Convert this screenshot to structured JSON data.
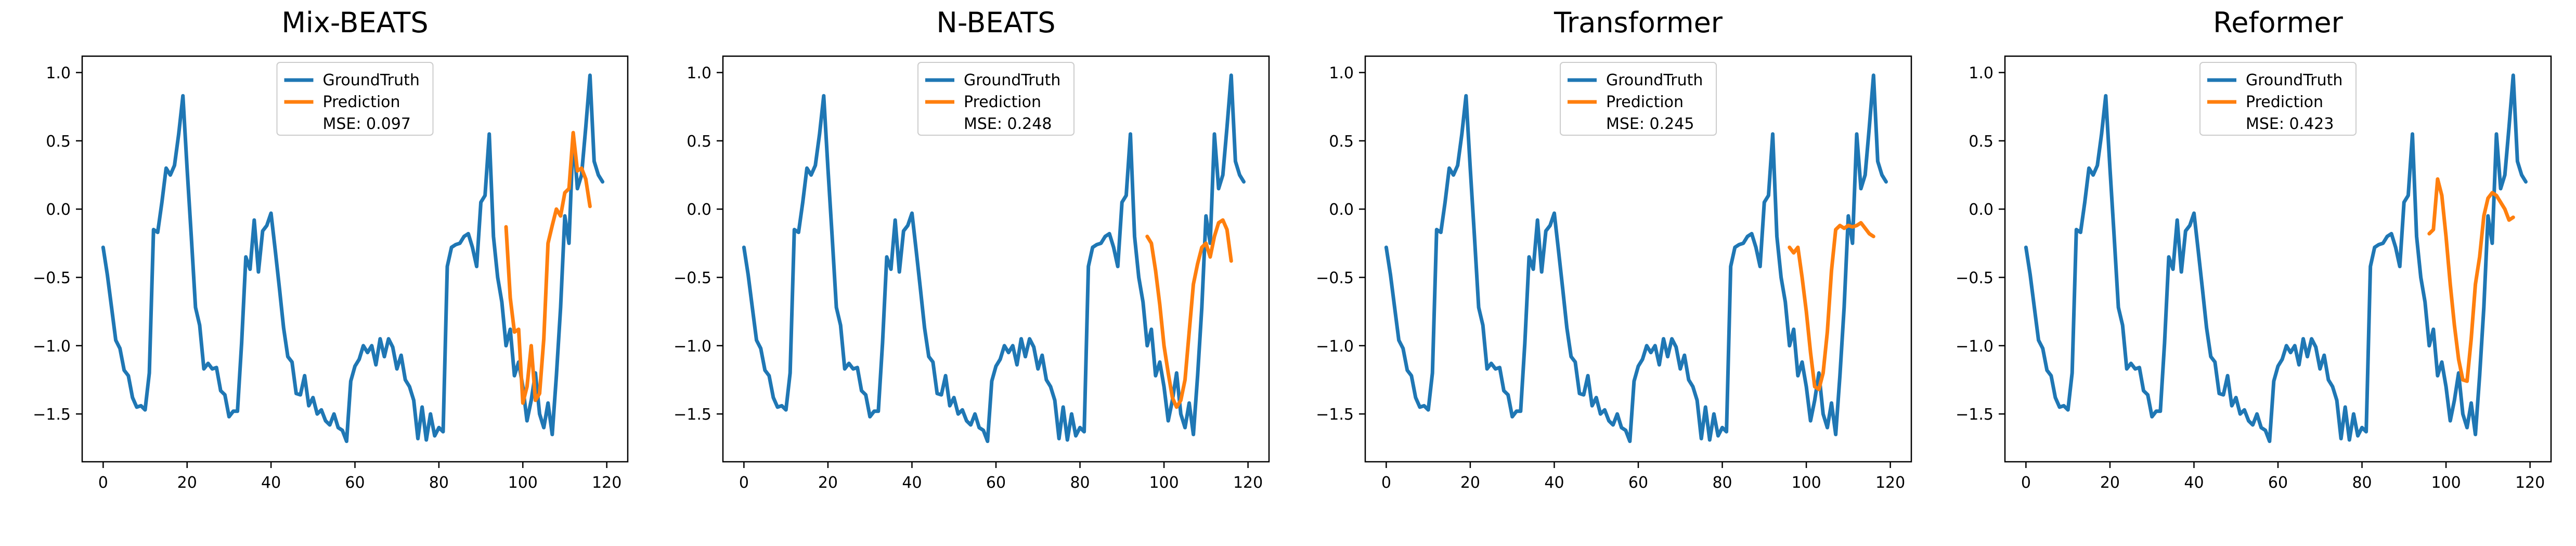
{
  "figure": {
    "colors": {
      "ground_truth": "#1f77b4",
      "prediction": "#ff7f0e",
      "axis": "#000000",
      "background": "#ffffff"
    },
    "legend_labels": {
      "ground_truth": "GroundTruth",
      "prediction": "Prediction"
    }
  },
  "chart_data": [
    {
      "type": "line",
      "title": "Mix-BEATS",
      "xlabel": "",
      "ylabel": "",
      "xlim": [
        -5,
        125
      ],
      "ylim": [
        -1.85,
        1.12
      ],
      "xticks": [
        0,
        20,
        40,
        60,
        80,
        100,
        120
      ],
      "yticks": [
        -1.5,
        -1.0,
        -0.5,
        0.0,
        0.5,
        1.0
      ],
      "ytick_labels": [
        "−1.5",
        "−1.0",
        "−0.5",
        "0.0",
        "0.5",
        "1.0"
      ],
      "grid": false,
      "legend_position": "top-center",
      "annotation": "MSE: 0.097",
      "series": [
        {
          "name": "GroundTruth",
          "x_start": 0,
          "values": [
            -0.28,
            -0.48,
            -0.72,
            -0.96,
            -1.02,
            -1.18,
            -1.22,
            -1.38,
            -1.45,
            -1.44,
            -1.47,
            -1.2,
            -0.15,
            -0.17,
            0.05,
            0.3,
            0.25,
            0.32,
            0.55,
            0.83,
            0.3,
            -0.2,
            -0.72,
            -0.85,
            -1.17,
            -1.13,
            -1.17,
            -1.16,
            -1.33,
            -1.36,
            -1.52,
            -1.48,
            -1.48,
            -0.98,
            -0.35,
            -0.44,
            -0.08,
            -0.46,
            -0.16,
            -0.12,
            -0.03,
            -0.3,
            -0.58,
            -0.87,
            -1.08,
            -1.12,
            -1.35,
            -1.36,
            -1.22,
            -1.44,
            -1.38,
            -1.5,
            -1.47,
            -1.55,
            -1.58,
            -1.5,
            -1.6,
            -1.62,
            -1.7,
            -1.26,
            -1.15,
            -1.1,
            -1.0,
            -1.05,
            -1.0,
            -1.14,
            -0.95,
            -1.08,
            -0.95,
            -1.01,
            -1.17,
            -1.07,
            -1.25,
            -1.3,
            -1.4,
            -1.68,
            -1.45,
            -1.69,
            -1.5,
            -1.66,
            -1.6,
            -1.63,
            -0.42,
            -0.28,
            -0.26,
            -0.25,
            -0.2,
            -0.18,
            -0.28,
            -0.42,
            0.05,
            0.1,
            0.55,
            -0.2,
            -0.5,
            -0.68,
            -1.0,
            -0.88,
            -1.22,
            -1.12,
            -1.3,
            -1.55,
            -1.4,
            -1.2,
            -1.5,
            -1.6,
            -1.42,
            -1.65,
            -1.22,
            -0.72,
            -0.05,
            -0.25,
            0.55,
            0.15,
            0.25,
            0.6,
            0.98,
            0.35,
            0.25,
            0.2
          ]
        },
        {
          "name": "Prediction",
          "x_start": 96,
          "values": [
            -0.13,
            -0.65,
            -0.9,
            -0.88,
            -1.42,
            -1.3,
            -1.0,
            -1.4,
            -1.35,
            -0.95,
            -0.25,
            -0.12,
            0.0,
            -0.05,
            0.12,
            0.15,
            0.56,
            0.28,
            0.3,
            0.22,
            0.02
          ]
        }
      ]
    },
    {
      "type": "line",
      "title": "N-BEATS",
      "xlabel": "",
      "ylabel": "",
      "xlim": [
        -5,
        125
      ],
      "ylim": [
        -1.85,
        1.12
      ],
      "xticks": [
        0,
        20,
        40,
        60,
        80,
        100,
        120
      ],
      "yticks": [
        -1.5,
        -1.0,
        -0.5,
        0.0,
        0.5,
        1.0
      ],
      "ytick_labels": [
        "−1.5",
        "−1.0",
        "−0.5",
        "0.0",
        "0.5",
        "1.0"
      ],
      "grid": false,
      "legend_position": "top-center",
      "annotation": "MSE: 0.248",
      "series": [
        {
          "name": "GroundTruth",
          "x_start": 0,
          "values": [
            -0.28,
            -0.48,
            -0.72,
            -0.96,
            -1.02,
            -1.18,
            -1.22,
            -1.38,
            -1.45,
            -1.44,
            -1.47,
            -1.2,
            -0.15,
            -0.17,
            0.05,
            0.3,
            0.25,
            0.32,
            0.55,
            0.83,
            0.3,
            -0.2,
            -0.72,
            -0.85,
            -1.17,
            -1.13,
            -1.17,
            -1.16,
            -1.33,
            -1.36,
            -1.52,
            -1.48,
            -1.48,
            -0.98,
            -0.35,
            -0.44,
            -0.08,
            -0.46,
            -0.16,
            -0.12,
            -0.03,
            -0.3,
            -0.58,
            -0.87,
            -1.08,
            -1.12,
            -1.35,
            -1.36,
            -1.22,
            -1.44,
            -1.38,
            -1.5,
            -1.47,
            -1.55,
            -1.58,
            -1.5,
            -1.6,
            -1.62,
            -1.7,
            -1.26,
            -1.15,
            -1.1,
            -1.0,
            -1.05,
            -1.0,
            -1.14,
            -0.95,
            -1.08,
            -0.95,
            -1.01,
            -1.17,
            -1.07,
            -1.25,
            -1.3,
            -1.4,
            -1.68,
            -1.45,
            -1.69,
            -1.5,
            -1.66,
            -1.6,
            -1.63,
            -0.42,
            -0.28,
            -0.26,
            -0.25,
            -0.2,
            -0.18,
            -0.28,
            -0.42,
            0.05,
            0.1,
            0.55,
            -0.2,
            -0.5,
            -0.68,
            -1.0,
            -0.88,
            -1.22,
            -1.12,
            -1.3,
            -1.55,
            -1.4,
            -1.2,
            -1.5,
            -1.6,
            -1.42,
            -1.65,
            -1.22,
            -0.72,
            -0.05,
            -0.25,
            0.55,
            0.15,
            0.25,
            0.6,
            0.98,
            0.35,
            0.25,
            0.2
          ]
        },
        {
          "name": "Prediction",
          "x_start": 96,
          "values": [
            -0.2,
            -0.25,
            -0.45,
            -0.7,
            -1.0,
            -1.2,
            -1.38,
            -1.45,
            -1.4,
            -1.25,
            -0.9,
            -0.55,
            -0.4,
            -0.28,
            -0.25,
            -0.35,
            -0.2,
            -0.1,
            -0.08,
            -0.15,
            -0.38
          ]
        }
      ]
    },
    {
      "type": "line",
      "title": "Transformer",
      "xlabel": "",
      "ylabel": "",
      "xlim": [
        -5,
        125
      ],
      "ylim": [
        -1.85,
        1.12
      ],
      "xticks": [
        0,
        20,
        40,
        60,
        80,
        100,
        120
      ],
      "yticks": [
        -1.5,
        -1.0,
        -0.5,
        0.0,
        0.5,
        1.0
      ],
      "ytick_labels": [
        "−1.5",
        "−1.0",
        "−0.5",
        "0.0",
        "0.5",
        "1.0"
      ],
      "grid": false,
      "legend_position": "top-center",
      "annotation": "MSE: 0.245",
      "series": [
        {
          "name": "GroundTruth",
          "x_start": 0,
          "values": [
            -0.28,
            -0.48,
            -0.72,
            -0.96,
            -1.02,
            -1.18,
            -1.22,
            -1.38,
            -1.45,
            -1.44,
            -1.47,
            -1.2,
            -0.15,
            -0.17,
            0.05,
            0.3,
            0.25,
            0.32,
            0.55,
            0.83,
            0.3,
            -0.2,
            -0.72,
            -0.85,
            -1.17,
            -1.13,
            -1.17,
            -1.16,
            -1.33,
            -1.36,
            -1.52,
            -1.48,
            -1.48,
            -0.98,
            -0.35,
            -0.44,
            -0.08,
            -0.46,
            -0.16,
            -0.12,
            -0.03,
            -0.3,
            -0.58,
            -0.87,
            -1.08,
            -1.12,
            -1.35,
            -1.36,
            -1.22,
            -1.44,
            -1.38,
            -1.5,
            -1.47,
            -1.55,
            -1.58,
            -1.5,
            -1.6,
            -1.62,
            -1.7,
            -1.26,
            -1.15,
            -1.1,
            -1.0,
            -1.05,
            -1.0,
            -1.14,
            -0.95,
            -1.08,
            -0.95,
            -1.01,
            -1.17,
            -1.07,
            -1.25,
            -1.3,
            -1.4,
            -1.68,
            -1.45,
            -1.69,
            -1.5,
            -1.66,
            -1.6,
            -1.63,
            -0.42,
            -0.28,
            -0.26,
            -0.25,
            -0.2,
            -0.18,
            -0.28,
            -0.42,
            0.05,
            0.1,
            0.55,
            -0.2,
            -0.5,
            -0.68,
            -1.0,
            -0.88,
            -1.22,
            -1.12,
            -1.3,
            -1.55,
            -1.4,
            -1.2,
            -1.5,
            -1.6,
            -1.42,
            -1.65,
            -1.22,
            -0.72,
            -0.05,
            -0.25,
            0.55,
            0.15,
            0.25,
            0.6,
            0.98,
            0.35,
            0.25,
            0.2
          ]
        },
        {
          "name": "Prediction",
          "x_start": 96,
          "values": [
            -0.28,
            -0.32,
            -0.28,
            -0.5,
            -0.75,
            -1.05,
            -1.3,
            -1.32,
            -1.2,
            -0.9,
            -0.45,
            -0.15,
            -0.12,
            -0.14,
            -0.12,
            -0.13,
            -0.12,
            -0.1,
            -0.14,
            -0.18,
            -0.2
          ]
        }
      ]
    },
    {
      "type": "line",
      "title": "Reformer",
      "xlabel": "",
      "ylabel": "",
      "xlim": [
        -5,
        125
      ],
      "ylim": [
        -1.85,
        1.12
      ],
      "xticks": [
        0,
        20,
        40,
        60,
        80,
        100,
        120
      ],
      "yticks": [
        -1.5,
        -1.0,
        -0.5,
        0.0,
        0.5,
        1.0
      ],
      "ytick_labels": [
        "−1.5",
        "−1.0",
        "−0.5",
        "0.0",
        "0.5",
        "1.0"
      ],
      "grid": false,
      "legend_position": "top-center",
      "annotation": "MSE: 0.423",
      "series": [
        {
          "name": "GroundTruth",
          "x_start": 0,
          "values": [
            -0.28,
            -0.48,
            -0.72,
            -0.96,
            -1.02,
            -1.18,
            -1.22,
            -1.38,
            -1.45,
            -1.44,
            -1.47,
            -1.2,
            -0.15,
            -0.17,
            0.05,
            0.3,
            0.25,
            0.32,
            0.55,
            0.83,
            0.3,
            -0.2,
            -0.72,
            -0.85,
            -1.17,
            -1.13,
            -1.17,
            -1.16,
            -1.33,
            -1.36,
            -1.52,
            -1.48,
            -1.48,
            -0.98,
            -0.35,
            -0.44,
            -0.08,
            -0.46,
            -0.16,
            -0.12,
            -0.03,
            -0.3,
            -0.58,
            -0.87,
            -1.08,
            -1.12,
            -1.35,
            -1.36,
            -1.22,
            -1.44,
            -1.38,
            -1.5,
            -1.47,
            -1.55,
            -1.58,
            -1.5,
            -1.6,
            -1.62,
            -1.7,
            -1.26,
            -1.15,
            -1.1,
            -1.0,
            -1.05,
            -1.0,
            -1.14,
            -0.95,
            -1.08,
            -0.95,
            -1.01,
            -1.17,
            -1.07,
            -1.25,
            -1.3,
            -1.4,
            -1.68,
            -1.45,
            -1.69,
            -1.5,
            -1.66,
            -1.6,
            -1.63,
            -0.42,
            -0.28,
            -0.26,
            -0.25,
            -0.2,
            -0.18,
            -0.28,
            -0.42,
            0.05,
            0.1,
            0.55,
            -0.2,
            -0.5,
            -0.68,
            -1.0,
            -0.88,
            -1.22,
            -1.12,
            -1.3,
            -1.55,
            -1.4,
            -1.2,
            -1.5,
            -1.6,
            -1.42,
            -1.65,
            -1.22,
            -0.72,
            -0.05,
            -0.25,
            0.55,
            0.15,
            0.25,
            0.6,
            0.98,
            0.35,
            0.25,
            0.2
          ]
        },
        {
          "name": "Prediction",
          "x_start": 96,
          "values": [
            -0.18,
            -0.15,
            0.22,
            0.1,
            -0.2,
            -0.55,
            -0.85,
            -1.1,
            -1.25,
            -1.26,
            -0.95,
            -0.55,
            -0.35,
            -0.05,
            0.08,
            0.12,
            0.1,
            0.05,
            0.0,
            -0.08,
            -0.06
          ]
        }
      ]
    }
  ]
}
